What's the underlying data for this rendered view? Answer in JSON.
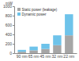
{
  "chart_data": {
    "type": "bar",
    "stacked": true,
    "y_label": "mW",
    "categories": [
      "90 nm",
      "65 nm",
      "45 nm",
      "32 nm",
      "22 nm"
    ],
    "series": [
      {
        "name": "Static power (leakage)",
        "color": "#a6a6a6",
        "values": [
          30,
          60,
          90,
          170,
          380
        ]
      },
      {
        "name": "Dynamic power",
        "color": "#6ec3ea",
        "values": [
          40,
          80,
          110,
          210,
          450
        ]
      }
    ],
    "ylim": [
      0,
      1000
    ],
    "yticks": [
      0,
      200,
      400,
      600,
      800,
      1000
    ],
    "grid": false,
    "legend": "upper left"
  }
}
